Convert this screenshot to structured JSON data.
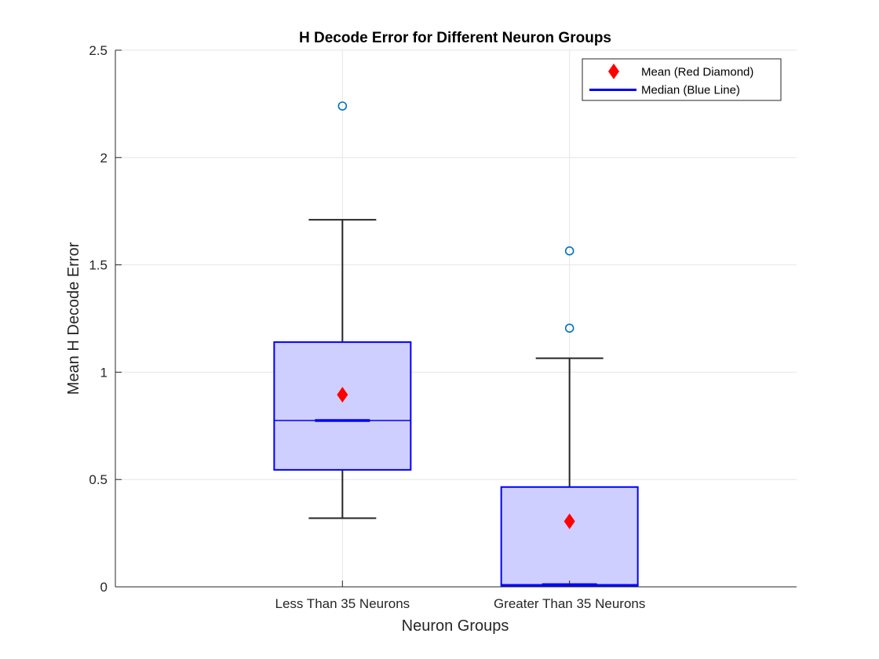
{
  "chart_data": {
    "type": "box",
    "title": "H Decode Error for Different Neuron Groups",
    "xlabel": "Neuron Groups",
    "ylabel": "Mean H Decode Error",
    "ylim": [
      0,
      2.5
    ],
    "yticks": [
      0,
      0.5,
      1,
      1.5,
      2,
      2.5
    ],
    "ytick_labels": [
      "0",
      "0.5",
      "1",
      "1.5",
      "2",
      "2.5"
    ],
    "grid": true,
    "categories": [
      "Less Than 35 Neurons",
      "Greater Than 35 Neurons"
    ],
    "boxes": [
      {
        "category": "Less Than 35 Neurons",
        "whisker_low": 0.32,
        "q1": 0.545,
        "median": 0.775,
        "q3": 1.14,
        "whisker_high": 1.71,
        "mean": 0.895,
        "outliers": [
          2.24
        ]
      },
      {
        "category": "Greater Than 35 Neurons",
        "whisker_low": 0.005,
        "q1": 0.005,
        "median": 0.01,
        "q3": 0.465,
        "whisker_high": 1.065,
        "mean": 0.305,
        "outliers": [
          1.205,
          1.565
        ]
      }
    ],
    "legend": {
      "placement": "top-right",
      "entries": [
        {
          "label": "Mean (Red Diamond)",
          "marker": "diamond",
          "color": "#ff0000"
        },
        {
          "label": "Median (Blue Line)",
          "marker": "line",
          "color": "#0000ff"
        }
      ]
    },
    "colors": {
      "box_fill": "#ccccff",
      "box_edge": "#0000ff",
      "median": "#0000ff",
      "whisker": "#262626",
      "mean_marker": "#ff0000",
      "outlier": "#0072bd",
      "grid": "#e6e6e6",
      "axis": "#262626"
    }
  }
}
